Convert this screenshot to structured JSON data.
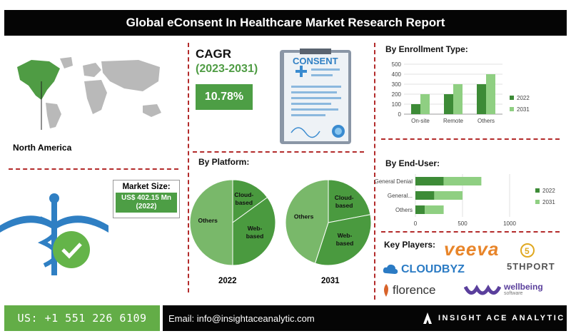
{
  "title": "Global eConsent In Healthcare Market Research Report",
  "region": {
    "label": "North America"
  },
  "cagr": {
    "label": "CAGR",
    "period": "(2023-2031)",
    "value": "10.78%"
  },
  "consent_doc_label": "CONSENT",
  "market_size": {
    "label": "Market Size:",
    "value": "US$ 402.15 Mn (2022)"
  },
  "enrollment": {
    "title": "By Enrollment Type:"
  },
  "platform": {
    "title": "By Platform:",
    "year_2022": "2022",
    "year_2031": "2031"
  },
  "end_user": {
    "title": "By End-User:"
  },
  "key_players": {
    "title": "Key Players:",
    "veeva": "veeva",
    "fifthport": "5THPORT",
    "cloudbyz": "CLOUDBYZ",
    "florence": "florence",
    "wellbeing": "wellbeing",
    "wellbeing_sub": "software"
  },
  "footer": {
    "phone": "US: +1 551 226 6109",
    "email": "Email: info@insightaceanalytic.com",
    "brand": "INSIGHT ACE ANALYTIC"
  },
  "colors": {
    "dark_green": "#3d8b37",
    "light_green": "#8fcf82",
    "pie_dark": "#4a9a3f",
    "pie_light": "#79b86a",
    "accent_red": "#b32b2b"
  },
  "chart_data": [
    {
      "type": "bar",
      "title": "By Enrollment Type:",
      "categories": [
        "On-site",
        "Remote",
        "Others"
      ],
      "series": [
        {
          "name": "2022",
          "values": [
            100,
            200,
            300
          ]
        },
        {
          "name": "2031",
          "values": [
            200,
            300,
            400
          ]
        }
      ],
      "ylim": [
        0,
        500
      ],
      "yticks": [
        0,
        100,
        200,
        300,
        400,
        500
      ],
      "legend": "right"
    },
    {
      "type": "pie",
      "title": "By Platform:",
      "subtitle": "2022",
      "labels": [
        "Cloud-based",
        "Web-based",
        "Others"
      ],
      "values": [
        15,
        35,
        50
      ]
    },
    {
      "type": "pie",
      "title": "By Platform:",
      "subtitle": "2031",
      "labels": [
        "Cloud-based",
        "Web-based",
        "Others"
      ],
      "values": [
        22,
        33,
        45
      ]
    },
    {
      "type": "bar",
      "orientation": "horizontal",
      "title": "By End-User:",
      "categories": [
        "General Denial",
        "General...",
        "Others"
      ],
      "series": [
        {
          "name": "2022",
          "values": [
            300,
            200,
            100
          ]
        },
        {
          "name": "2031",
          "values": [
            400,
            300,
            200
          ]
        }
      ],
      "xlim": [
        0,
        1000
      ],
      "xticks": [
        0,
        500,
        1000
      ],
      "legend": "right"
    }
  ]
}
